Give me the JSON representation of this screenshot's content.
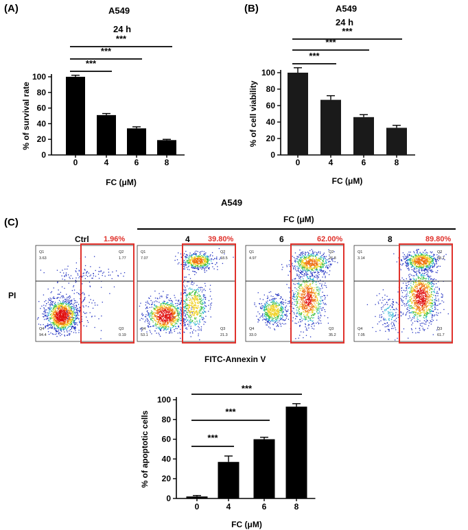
{
  "panels": {
    "a_label": "(A)",
    "b_label": "(B)",
    "c_label": "(C)"
  },
  "chart_data": [
    {
      "type": "bar",
      "title": "A549",
      "subtitle": "24 h",
      "categories": [
        "0",
        "4",
        "6",
        "8"
      ],
      "values": [
        100,
        51,
        34,
        19
      ],
      "errors": [
        2,
        2,
        2,
        1
      ],
      "xlabel": "FC (μM)",
      "ylabel": "% of survival rate",
      "ylim": [
        0,
        100
      ],
      "yticks": [
        "0",
        "20",
        "40",
        "60",
        "80",
        "100"
      ],
      "significance": [
        {
          "from": "0",
          "to": "4",
          "label": "***"
        },
        {
          "from": "0",
          "to": "6",
          "label": "***"
        },
        {
          "from": "0",
          "to": "8",
          "label": "***"
        }
      ]
    },
    {
      "type": "bar",
      "title": "A549",
      "subtitle": "24 h",
      "categories": [
        "0",
        "4",
        "6",
        "8"
      ],
      "values": [
        100,
        67,
        46,
        33
      ],
      "errors": [
        6,
        5,
        3,
        3
      ],
      "xlabel": "FC (μM)",
      "ylabel": "% of cell viability",
      "ylim": [
        0,
        100
      ],
      "yticks": [
        "0",
        "20",
        "40",
        "60",
        "80",
        "100"
      ],
      "significance": [
        {
          "from": "0",
          "to": "4",
          "label": "***"
        },
        {
          "from": "0",
          "to": "6",
          "label": "***"
        },
        {
          "from": "0",
          "to": "8",
          "label": "***"
        }
      ]
    },
    {
      "type": "bar",
      "title": "",
      "categories": [
        "0",
        "4",
        "6",
        "8"
      ],
      "values": [
        2,
        37,
        60,
        93
      ],
      "errors": [
        1,
        6,
        2,
        3
      ],
      "xlabel": "FC (μM)",
      "ylabel": "% of apoptotic cells",
      "ylim": [
        0,
        100
      ],
      "yticks": [
        "0",
        "20",
        "40",
        "60",
        "80",
        "100"
      ],
      "significance": [
        {
          "from": "0",
          "to": "4",
          "label": "***"
        },
        {
          "from": "0",
          "to": "6",
          "label": "***"
        },
        {
          "from": "0",
          "to": "8",
          "label": "***"
        }
      ]
    }
  ],
  "flow": {
    "title": "A549",
    "group_label": "FC (μM)",
    "x_label": "FITC-Annexin V",
    "y_label": "PI",
    "plots": [
      {
        "label": "Ctrl",
        "percent": "1.96%",
        "q1": "3.63",
        "q2": "1.77",
        "q3": "0.19",
        "q4": "94.4"
      },
      {
        "label": "4",
        "percent": "39.80%",
        "q1": "7.07",
        "q2": "18.5",
        "q3": "21.3",
        "q4": "53.1"
      },
      {
        "label": "6",
        "percent": "62.00%",
        "q1": "4.97",
        "q2": "26.8",
        "q3": "35.2",
        "q4": "33.0"
      },
      {
        "label": "8",
        "percent": "89.80%",
        "q1": "3.14",
        "q2": "28.1",
        "q3": "61.7",
        "q4": "7.05"
      }
    ],
    "quadrant_names": [
      "Q1",
      "Q2",
      "Q3",
      "Q4"
    ]
  }
}
